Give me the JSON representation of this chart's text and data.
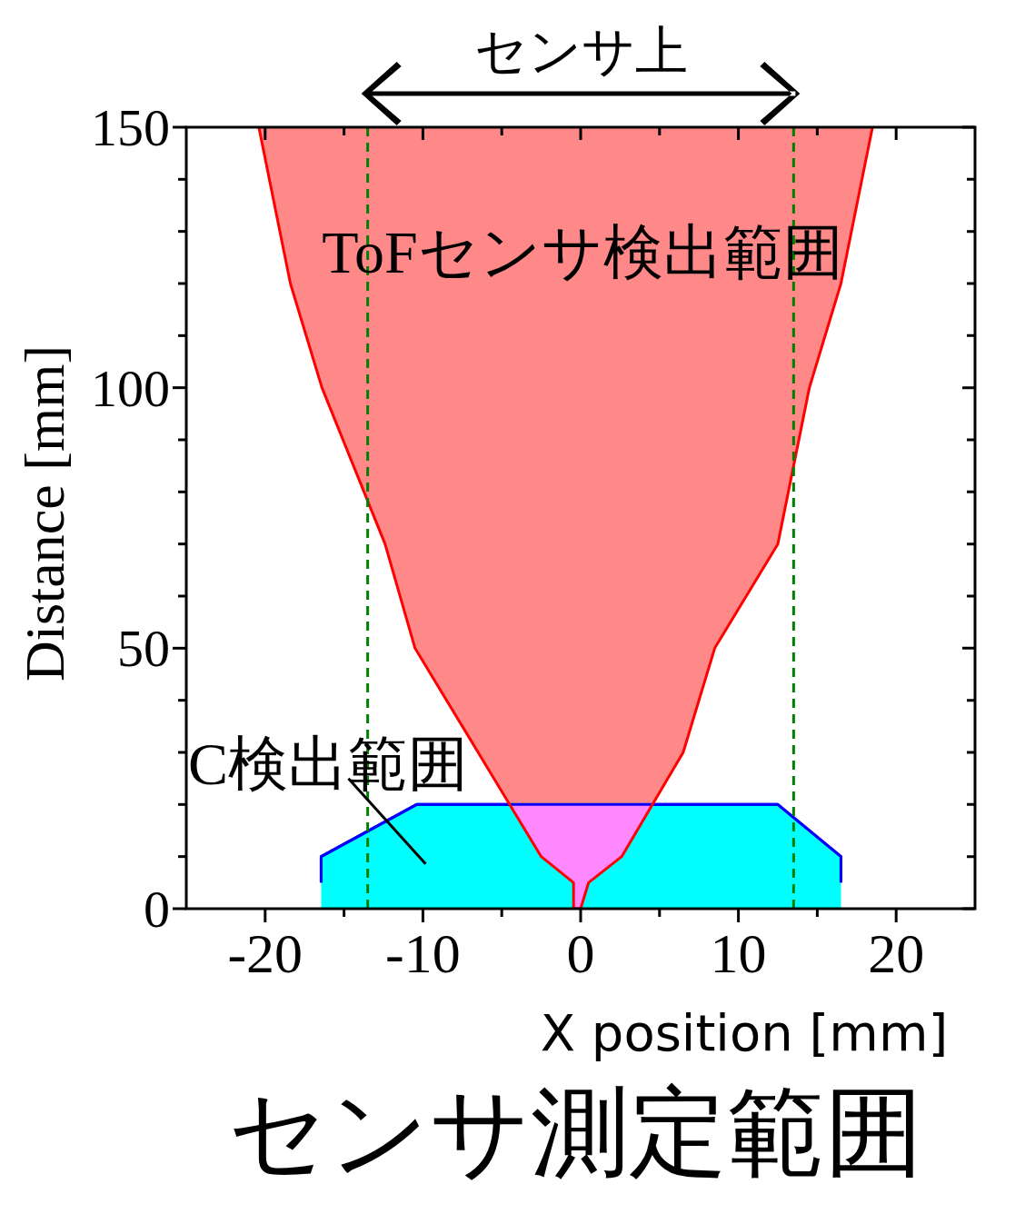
{
  "chart_data": {
    "type": "line",
    "title": "センサ測定範囲",
    "xlabel": "X position [mm]",
    "ylabel": "Distance [mm]",
    "xlim": [
      -25,
      25
    ],
    "ylim": [
      0,
      150
    ],
    "xticks": [
      -20,
      {
        "value": -15,
        "label": null
      },
      -10,
      {
        "value": -5,
        "label": null
      },
      0,
      {
        "value": 5,
        "label": null
      },
      10,
      {
        "value": 15,
        "label": null
      },
      20
    ],
    "yticks": [
      0,
      {
        "value": 10,
        "label": null
      },
      {
        "value": 20,
        "label": null
      },
      {
        "value": 30,
        "label": null
      },
      {
        "value": 40,
        "label": null
      },
      50,
      {
        "value": 60,
        "label": null
      },
      {
        "value": 70,
        "label": null
      },
      {
        "value": 80,
        "label": null
      },
      {
        "value": 90,
        "label": null
      },
      100,
      {
        "value": 110,
        "label": null
      },
      {
        "value": 120,
        "label": null
      },
      {
        "value": 130,
        "label": null
      },
      {
        "value": 140,
        "label": null
      },
      150
    ],
    "series": [
      {
        "color": "#ff0000",
        "x": [
          -20.4,
          -18.4,
          -16.4,
          -12.4,
          -10.5,
          -6.5,
          -2.5,
          -0.45,
          -0.45,
          0,
          0.5,
          2.6,
          6.5,
          8.5,
          12.5,
          13.5,
          14.5,
          16.5,
          18.5
        ],
        "values": [
          150,
          120,
          100,
          70,
          50,
          30,
          10,
          5,
          0,
          0,
          5,
          10,
          30,
          50,
          70,
          85,
          100,
          120,
          150
        ]
      },
      {
        "type": "area",
        "color": "#00ffff",
        "x": [
          -16.45,
          -16.45,
          -10.4,
          12.5,
          16.5,
          16.5
        ],
        "values": [
          5,
          10,
          20,
          20,
          10,
          5
        ]
      }
    ],
    "ref_lines": [
      {
        "axis": "x",
        "value": -13.5,
        "color": "#008000",
        "line_style": "dashed"
      },
      {
        "axis": "x",
        "value": 13.5,
        "color": "#008000",
        "line_style": "dashed"
      }
    ],
    "annotations": [
      "センサ上",
      "ToFセンサ検出範囲",
      "C検出範囲"
    ]
  }
}
